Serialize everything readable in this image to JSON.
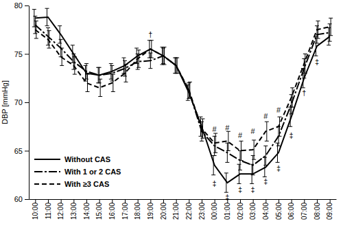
{
  "chart_data": {
    "type": "line",
    "y_label": "DBP [mmHg]",
    "categories": [
      "10:00",
      "11:00",
      "12:00",
      "13:00",
      "14:00",
      "15:00",
      "16:00",
      "17:00",
      "18:00",
      "19:00",
      "20:00",
      "21:00",
      "22:00",
      "23:00",
      "00:00",
      "01:00",
      "02:00",
      "03:00",
      "04:00",
      "05:00",
      "06:00",
      "07:00",
      "08:00",
      "09:00"
    ],
    "ylim": [
      60,
      80
    ],
    "yticks": [
      60,
      65,
      70,
      75,
      80
    ],
    "legend": "lower left",
    "series": [
      {
        "name": "Without CAS",
        "color": "#000000",
        "line_style": "solid",
        "values": [
          78.7,
          78.8,
          77.0,
          75.0,
          73.0,
          72.8,
          73.2,
          73.8,
          74.8,
          75.5,
          74.8,
          73.8,
          71.0,
          67.5,
          63.5,
          61.7,
          62.6,
          62.6,
          63.3,
          64.8,
          68.5,
          72.5,
          75.8,
          76.8
        ],
        "errors": [
          0.9,
          0.9,
          0.9,
          0.9,
          0.8,
          0.8,
          0.8,
          0.8,
          0.8,
          0.9,
          0.9,
          0.8,
          0.8,
          1.0,
          1.0,
          1.0,
          1.0,
          1.0,
          1.0,
          1.0,
          1.0,
          1.0,
          1.0,
          0.9
        ]
      },
      {
        "name": "With 1 or 2 CAS",
        "color": "#000000",
        "line_style": "dashdot",
        "values": [
          78.0,
          76.8,
          75.6,
          74.2,
          73.2,
          72.8,
          73.0,
          73.5,
          74.2,
          74.3,
          74.8,
          73.8,
          71.2,
          67.0,
          65.5,
          64.8,
          64.0,
          63.5,
          64.5,
          66.5,
          69.8,
          73.5,
          77.0,
          77.2
        ],
        "errors": [
          0.9,
          0.9,
          0.9,
          0.8,
          0.8,
          0.8,
          0.8,
          0.8,
          0.8,
          0.8,
          0.8,
          0.8,
          0.8,
          1.0,
          1.0,
          1.0,
          1.0,
          1.0,
          1.0,
          1.0,
          1.0,
          1.0,
          0.9,
          0.9
        ]
      },
      {
        "name": "With ≥3 CAS",
        "color": "#000000",
        "line_style": "dashed",
        "values": [
          77.5,
          76.5,
          74.7,
          73.8,
          72.0,
          71.5,
          72.0,
          73.0,
          74.5,
          75.5,
          74.8,
          73.8,
          71.3,
          67.3,
          65.8,
          66.0,
          65.0,
          65.1,
          67.0,
          67.5,
          70.5,
          74.0,
          77.5,
          77.8
        ],
        "errors": [
          0.9,
          0.9,
          0.9,
          0.9,
          0.9,
          0.9,
          0.9,
          0.9,
          0.9,
          0.9,
          0.9,
          0.8,
          0.8,
          1.0,
          1.0,
          1.0,
          1.0,
          1.0,
          1.0,
          1.0,
          1.0,
          1.0,
          0.9,
          0.9
        ]
      }
    ],
    "annotations": [
      {
        "x": "19:00",
        "y": 77.0,
        "text": "†"
      },
      {
        "x": "00:00",
        "y": 67.2,
        "text": "#"
      },
      {
        "x": "01:00",
        "y": 67.4,
        "text": "#"
      },
      {
        "x": "02:00",
        "y": 66.6,
        "text": "#"
      },
      {
        "x": "03:00",
        "y": 67.0,
        "text": "#"
      },
      {
        "x": "04:00",
        "y": 68.6,
        "text": "#"
      },
      {
        "x": "05:00",
        "y": 69.2,
        "text": "#"
      },
      {
        "x": "00:00",
        "y": 61.6,
        "text": "‡"
      },
      {
        "x": "01:00",
        "y": 60.2,
        "text": "‡"
      },
      {
        "x": "02:00",
        "y": 61.0,
        "text": "‡"
      },
      {
        "x": "03:00",
        "y": 61.0,
        "text": "‡"
      },
      {
        "x": "04:00",
        "y": 61.8,
        "text": "‡"
      },
      {
        "x": "05:00",
        "y": 63.2,
        "text": "‡"
      },
      {
        "x": "06:00",
        "y": 66.6,
        "text": "‡"
      },
      {
        "x": "07:00",
        "y": 71.0,
        "text": "†"
      },
      {
        "x": "08:00",
        "y": 74.2,
        "text": "‡"
      }
    ]
  }
}
